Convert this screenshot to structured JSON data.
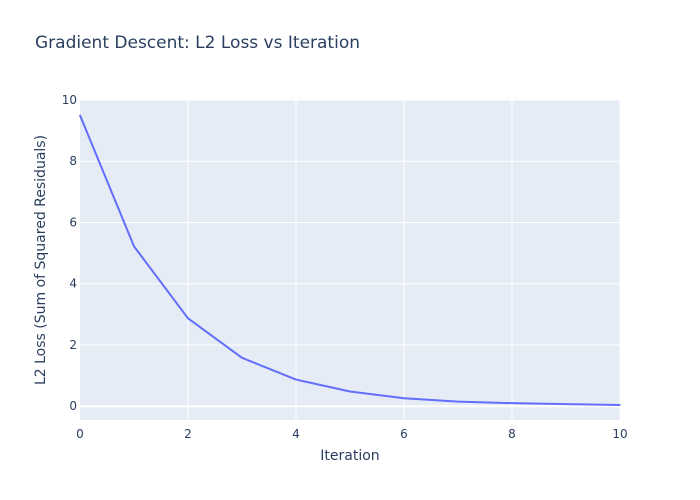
{
  "chart_data": {
    "type": "line",
    "title": "Gradient Descent: L2 Loss vs Iteration",
    "xlabel": "Iteration",
    "ylabel": "L2 Loss (Sum of Squared Residuals)",
    "xlim": [
      0,
      10
    ],
    "ylim": [
      -0.45,
      10
    ],
    "x_ticks": [
      0,
      2,
      4,
      6,
      8,
      10
    ],
    "y_ticks": [
      0,
      2,
      4,
      6,
      8,
      10
    ],
    "grid": true,
    "legend": "none",
    "series": [
      {
        "x": [
          0,
          1,
          2,
          3,
          4,
          5,
          6,
          7,
          8,
          9,
          10
        ],
        "y": [
          9.5,
          5.22,
          2.87,
          1.58,
          0.87,
          0.48,
          0.26,
          0.15,
          0.1,
          0.07,
          0.04
        ],
        "color": "#636efa"
      }
    ],
    "colors": {
      "plot_background": "#e5ecf6",
      "grid": "#ffffff",
      "line": "#636efa",
      "text": "#2a3f5f"
    }
  }
}
